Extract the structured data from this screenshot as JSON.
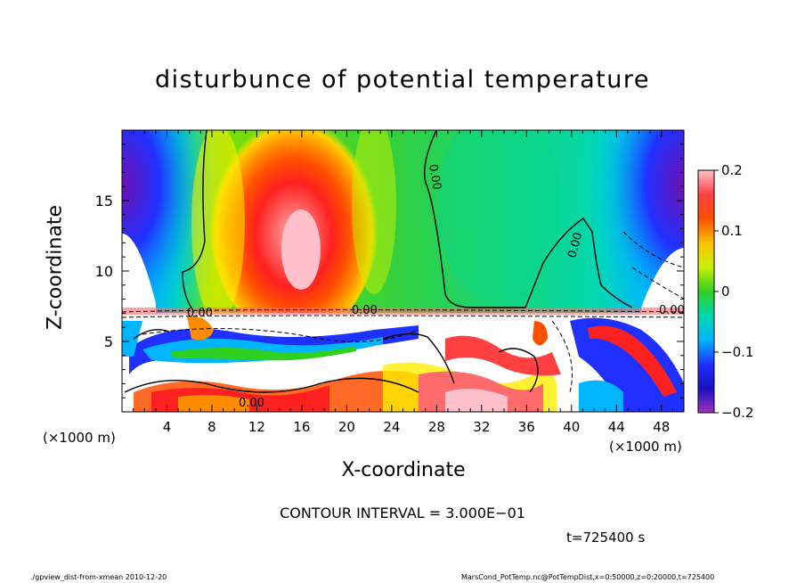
{
  "chart_data": {
    "type": "heatmap",
    "title": "disturbunce of potential temperature",
    "xlabel": "X-coordinate",
    "ylabel": "Z-coordinate",
    "x_unit_left": "(×1000 m)",
    "x_unit_right": "(×1000 m)",
    "xlim": [
      0,
      50
    ],
    "ylim": [
      0,
      20
    ],
    "x_ticks": [
      4,
      8,
      12,
      16,
      20,
      24,
      28,
      32,
      36,
      40,
      44,
      48
    ],
    "y_ticks": [
      5,
      10,
      15
    ],
    "colorbar": {
      "range": [
        -0.2,
        0.2
      ],
      "tick_labels": [
        "0.2",
        "0.1",
        "0",
        "−0.1",
        "−0.2"
      ],
      "tick_values": [
        0.2,
        0.1,
        0,
        -0.1,
        -0.2
      ],
      "colors": [
        "#ffc0cb",
        "#ff6a6a",
        "#ff2020",
        "#ff5000",
        "#ff8c00",
        "#ffc000",
        "#ffee00",
        "#c8f000",
        "#80e000",
        "#30d020",
        "#00c870",
        "#00d8b0",
        "#00d8e8",
        "#00b4ff",
        "#2070ff",
        "#2030ff",
        "#1810c0",
        "#7010b0",
        "#a030c0"
      ]
    },
    "contour_labels": [
      "0.00",
      "0.00",
      "0.00",
      "0.00",
      "0.00",
      "0.00"
    ],
    "contour_interval": "CONTOUR INTERVAL = 3.000E−01",
    "time": "t=725400 s",
    "footer_left": "./gpview_dist-from-xmean  2010-12-20",
    "footer_right": "MarsCond_PotTemp.nc@PotTempDist,x=0:50000,z=0:20000,t=725400"
  }
}
